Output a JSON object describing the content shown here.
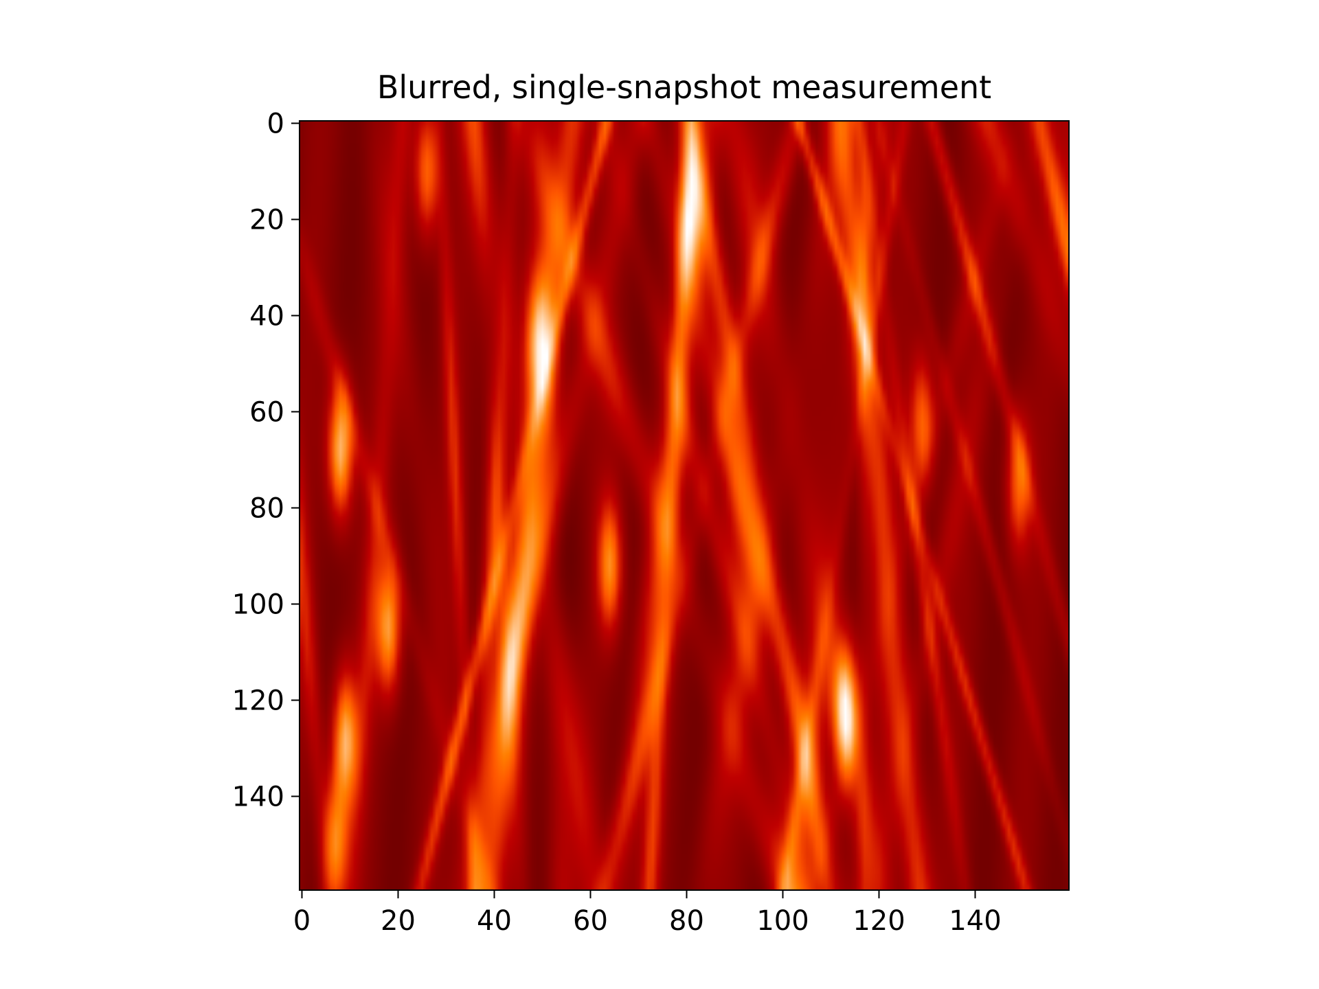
{
  "chart_data": {
    "type": "heatmap",
    "title": "Blurred, single-snapshot measurement",
    "xlabel": "",
    "ylabel": "",
    "shape": [
      160,
      160
    ],
    "xlim": [
      -0.5,
      159.5
    ],
    "ylim": [
      159.5,
      -0.5
    ],
    "y_axis_inverted": true,
    "colormap": "gist_heat",
    "x_ticks": [
      0,
      20,
      40,
      60,
      80,
      100,
      120,
      140
    ],
    "y_ticks": [
      0,
      20,
      40,
      60,
      80,
      100,
      120,
      140
    ],
    "x_tick_labels": [
      "0",
      "20",
      "40",
      "60",
      "80",
      "100",
      "120",
      "140"
    ],
    "y_tick_labels": [
      "0",
      "20",
      "40",
      "60",
      "80",
      "100",
      "120",
      "140"
    ],
    "bright_features": [
      {
        "row": 68,
        "col": 8,
        "level": 1.0
      },
      {
        "row": 122,
        "col": 113,
        "level": 1.0
      },
      {
        "row": 128,
        "col": 9,
        "level": 0.9
      },
      {
        "row": 105,
        "col": 18,
        "level": 0.85
      },
      {
        "row": 92,
        "col": 64,
        "level": 0.8
      },
      {
        "row": 150,
        "col": 7,
        "level": 0.75
      },
      {
        "row": 10,
        "col": 26,
        "level": 0.7
      },
      {
        "row": 45,
        "col": 49,
        "level": 0.7
      },
      {
        "row": 62,
        "col": 129,
        "level": 0.65
      },
      {
        "row": 75,
        "col": 149,
        "level": 0.65
      },
      {
        "row": 20,
        "col": 81,
        "level": 0.55
      }
    ]
  }
}
